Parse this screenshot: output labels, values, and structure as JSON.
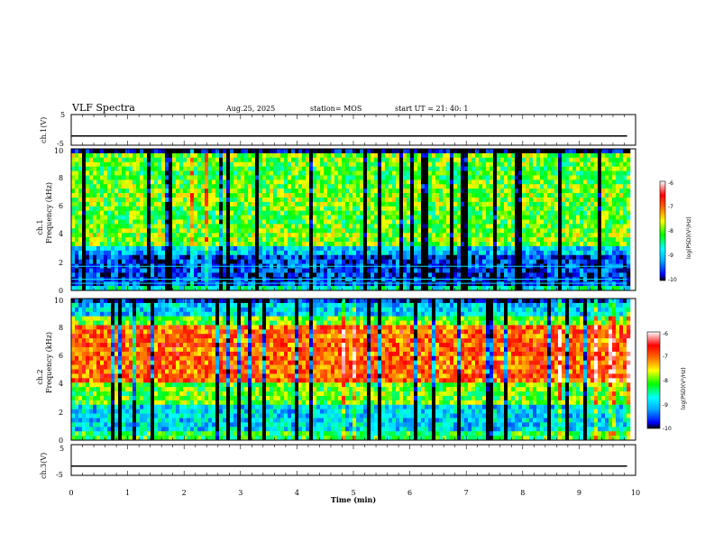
{
  "header": {
    "title": "VLF Spectra",
    "date": "Aug.25, 2025",
    "station": "station= MOS",
    "start": "start  UT =   21: 40: 1"
  },
  "chart_data": [
    {
      "type": "line",
      "name": "ch1-voltage",
      "ylabel": "ch.1(V)",
      "ylim": [
        -5,
        5
      ],
      "yticks": [
        "5",
        "-5"
      ],
      "baseline": -2
    },
    {
      "type": "heatmap",
      "name": "ch1-spectrogram",
      "ylabel": "ch.1\nFrequency (kHz)",
      "ylim": [
        0,
        10
      ],
      "yticks": [
        "0",
        "2",
        "4",
        "6",
        "8",
        "10"
      ],
      "colorbar_label": "log(PSD)(V²/Hz)",
      "colorbar_ticks": [
        "-6",
        "-7",
        "-8",
        "-9",
        "-10"
      ],
      "band_kHz": [
        3,
        9
      ],
      "dominant_level": -8,
      "lines_kHz": [
        0.5,
        0.8,
        1.7
      ]
    },
    {
      "type": "heatmap",
      "name": "ch2-spectrogram",
      "ylabel": "ch.2\nFrequency (kHz)",
      "ylim": [
        0,
        10
      ],
      "yticks": [
        "0",
        "2",
        "4",
        "6",
        "8",
        "10"
      ],
      "colorbar_label": "log(PSD)(V²/Hz)",
      "colorbar_ticks": [
        "-6",
        "-7",
        "-8",
        "-9",
        "-10"
      ],
      "band_kHz": [
        4,
        8
      ],
      "dominant_level": -7
    },
    {
      "type": "line",
      "name": "ch3-voltage",
      "ylabel": "ch.3(V)",
      "ylim": [
        -5,
        5
      ],
      "yticks": [
        "5",
        "-5"
      ],
      "baseline": -2
    }
  ],
  "xaxis": {
    "label": "Time  (min)",
    "xlim": [
      0,
      10
    ],
    "ticks": [
      "0",
      "1",
      "2",
      "3",
      "4",
      "5",
      "6",
      "7",
      "8",
      "9",
      "10"
    ],
    "data_end": 9.85
  }
}
